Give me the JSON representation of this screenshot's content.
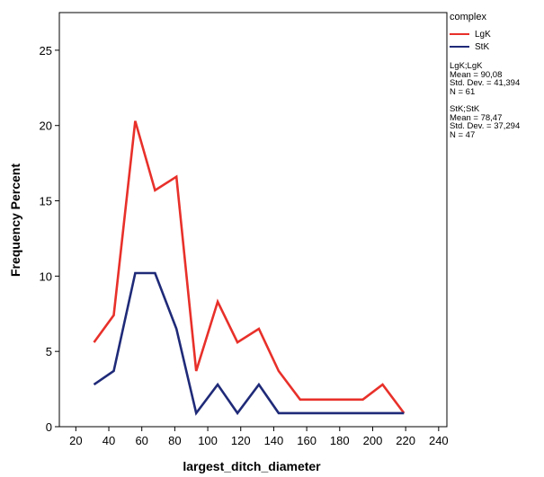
{
  "chart_data": {
    "type": "line",
    "xlabel": "largest_ditch_diameter",
    "ylabel": "Frequency Percent",
    "xlim": [
      10,
      245
    ],
    "ylim": [
      0,
      27.5
    ],
    "x_ticks": [
      20,
      40,
      60,
      80,
      100,
      120,
      140,
      160,
      180,
      200,
      220,
      240
    ],
    "y_ticks": [
      0,
      5,
      10,
      15,
      20,
      25
    ],
    "grid": false,
    "legend_position": "right",
    "legend_title": "complex",
    "series": [
      {
        "name": "LgK",
        "color": "#e8302a",
        "x": [
          31,
          43,
          56,
          68,
          81,
          93,
          106,
          118,
          131,
          143,
          156,
          169,
          181,
          194,
          206,
          219
        ],
        "y": [
          5.6,
          7.4,
          20.3,
          15.7,
          16.6,
          3.7,
          8.3,
          5.6,
          6.5,
          3.7,
          1.8,
          1.8,
          1.8,
          1.8,
          2.8,
          0.9
        ]
      },
      {
        "name": "StK",
        "color": "#1f2a78",
        "x": [
          31,
          43,
          56,
          68,
          81,
          93,
          106,
          118,
          131,
          143,
          156,
          169,
          181,
          194,
          206,
          219
        ],
        "y": [
          2.8,
          3.7,
          10.2,
          10.2,
          6.5,
          0.9,
          2.8,
          0.9,
          2.8,
          0.9,
          0.9,
          0.9,
          0.9,
          0.9,
          0.9,
          0.9
        ]
      }
    ],
    "stats": [
      {
        "header": "LgK;LgK",
        "mean": "Mean = 90,08",
        "sd": "Std. Dev. = 41,394",
        "n": "N = 61"
      },
      {
        "header": "StK;StK",
        "mean": "Mean = 78,47",
        "sd": "Std. Dev. = 37,294",
        "n": "N = 47"
      }
    ]
  }
}
